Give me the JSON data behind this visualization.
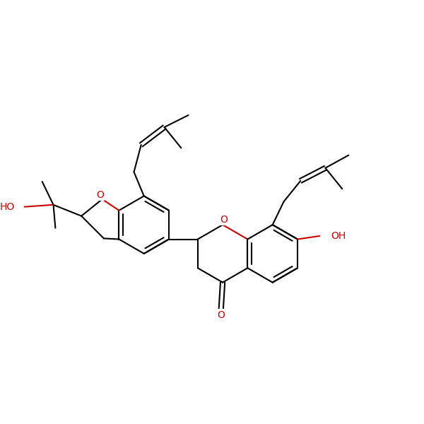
{
  "background": "#ffffff",
  "bond_color": "#000000",
  "oxygen_color": "#cc0000",
  "lw": 1.5,
  "fs": 10,
  "figsize": [
    6.0,
    6.0
  ],
  "dpi": 100,
  "xlim": [
    0,
    10
  ],
  "ylim": [
    0,
    10
  ]
}
